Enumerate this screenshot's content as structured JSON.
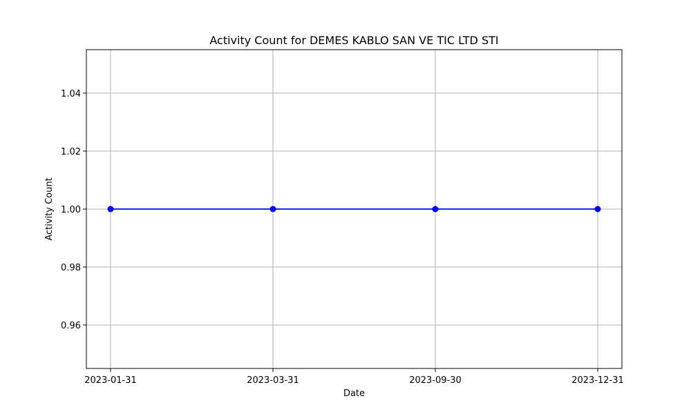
{
  "chart_data": {
    "type": "line",
    "title": "Activity Count for DEMES KABLO SAN VE TIC LTD STI",
    "xlabel": "Date",
    "ylabel": "Activity Count",
    "categories": [
      "2023-01-31",
      "2023-03-31",
      "2023-09-30",
      "2023-12-31"
    ],
    "series": [
      {
        "values": [
          1,
          1,
          1,
          1
        ],
        "color": "#0000ff",
        "marker": "circle"
      }
    ],
    "ylim": [
      0.945,
      1.055
    ],
    "yticks": [
      0.96,
      0.98,
      1.0,
      1.02,
      1.04
    ],
    "ytick_labels": [
      "0.96",
      "0.98",
      "1.00",
      "1.02",
      "1.04"
    ],
    "grid": true
  }
}
